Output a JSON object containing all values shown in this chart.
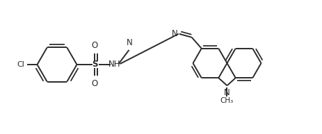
{
  "bg_color": "#ffffff",
  "line_color": "#2a2a2a",
  "lw": 1.4,
  "figsize": [
    4.64,
    1.93
  ],
  "dpi": 100,
  "xlim": [
    0,
    4.64
  ],
  "ylim": [
    0,
    1.93
  ]
}
